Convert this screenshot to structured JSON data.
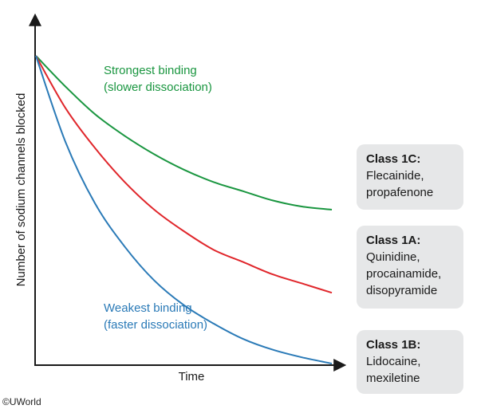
{
  "chart_data": {
    "type": "line",
    "xlabel": "Time",
    "ylabel": "Number of sodium channels blocked",
    "grid": false,
    "series": [
      {
        "key": "strongest",
        "color": "#1a9640",
        "annotation": [
          "Strongest binding",
          "(slower dissociation)"
        ],
        "x": [
          0,
          0.1,
          0.2,
          0.3,
          0.4,
          0.5,
          0.6,
          0.7,
          0.8,
          0.9,
          1.0
        ],
        "y": [
          1.0,
          0.9,
          0.81,
          0.74,
          0.68,
          0.63,
          0.59,
          0.56,
          0.53,
          0.51,
          0.5
        ]
      },
      {
        "key": "intermediate",
        "color": "#e0262b",
        "x": [
          0,
          0.1,
          0.2,
          0.3,
          0.4,
          0.5,
          0.6,
          0.7,
          0.8,
          0.9,
          1.0
        ],
        "y": [
          1.0,
          0.83,
          0.7,
          0.59,
          0.5,
          0.43,
          0.37,
          0.33,
          0.29,
          0.26,
          0.23
        ]
      },
      {
        "key": "weakest",
        "color": "#2a7ab7",
        "annotation": [
          "Weakest binding",
          "(faster dissociation)"
        ],
        "x": [
          0,
          0.1,
          0.2,
          0.3,
          0.4,
          0.5,
          0.6,
          0.7,
          0.8,
          0.9,
          1.0
        ],
        "y": [
          1.0,
          0.72,
          0.52,
          0.38,
          0.27,
          0.19,
          0.13,
          0.08,
          0.045,
          0.02,
          0.0
        ]
      }
    ]
  },
  "classes": [
    {
      "key": "1c",
      "title": "Class 1C:",
      "drugs": [
        "Flecainide,",
        "propafenone"
      ]
    },
    {
      "key": "1a",
      "title": "Class 1A:",
      "drugs": [
        "Quinidine,",
        "procainamide,",
        "disopyramide"
      ]
    },
    {
      "key": "1b",
      "title": "Class 1B:",
      "drugs": [
        "Lidocaine,",
        "mexiletine"
      ]
    }
  ],
  "copyright": "©UWorld"
}
